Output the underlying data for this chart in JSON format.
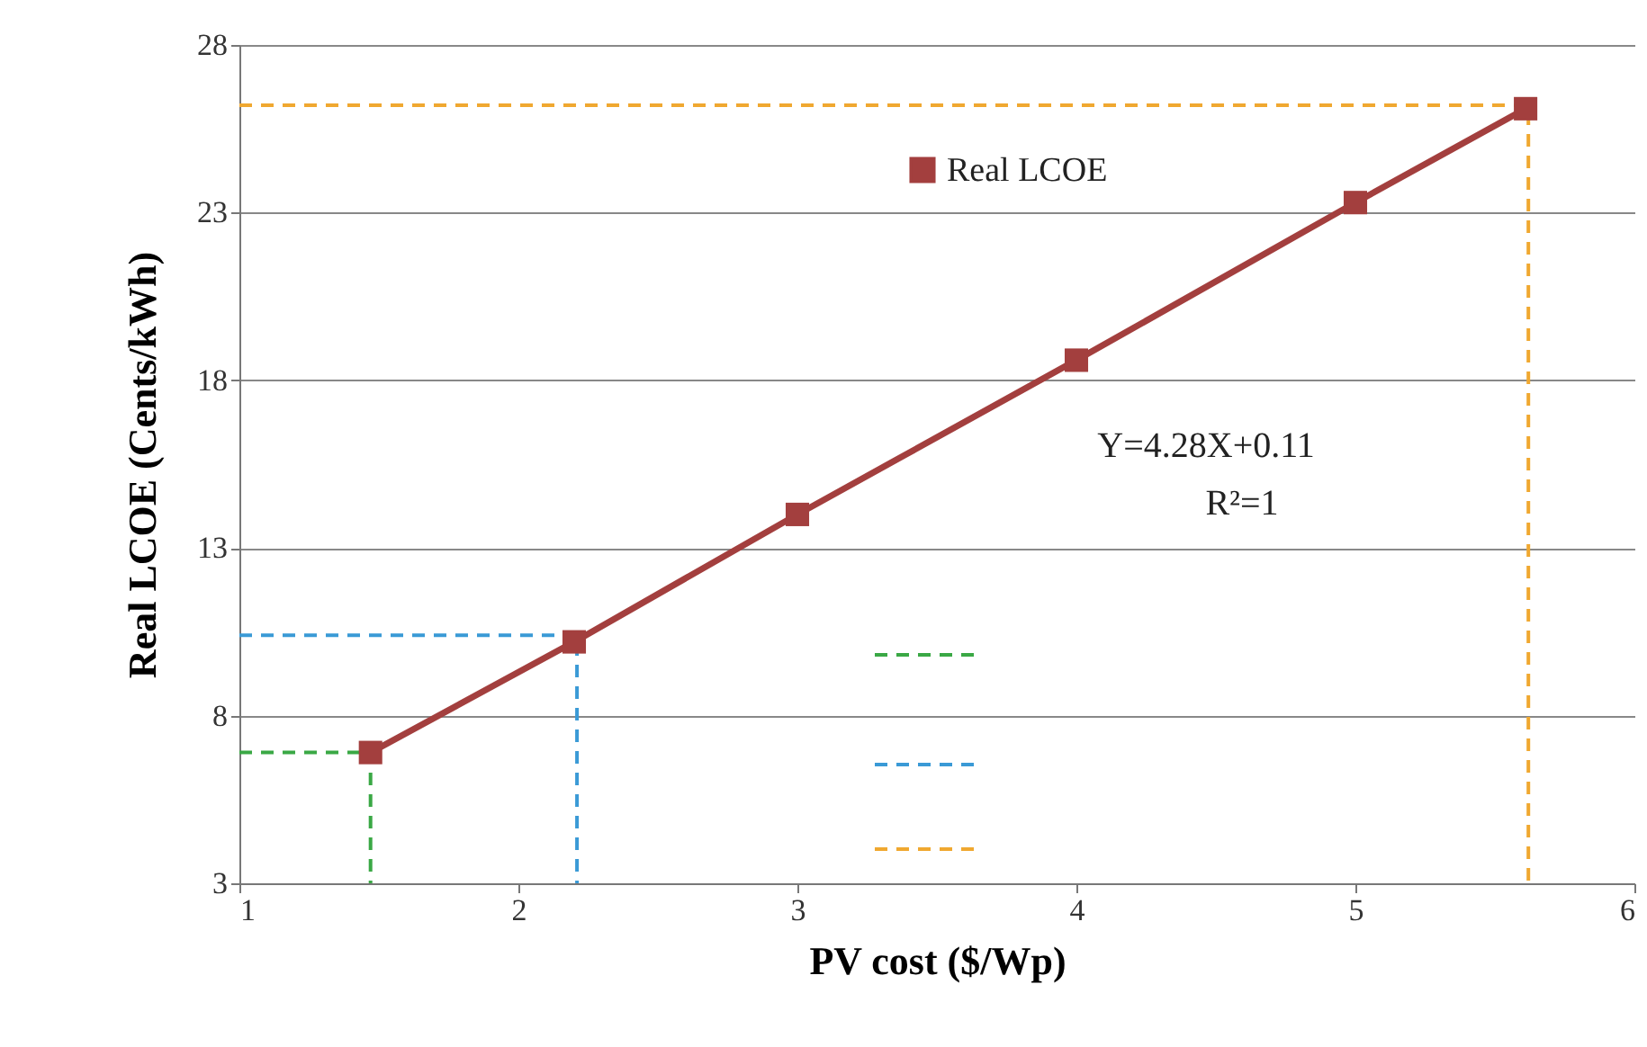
{
  "chart_data": {
    "type": "line",
    "xlabel": "PV cost ($/Wp)",
    "ylabel": "Real LCOE (Cents/kWh)",
    "xlim": [
      1,
      6
    ],
    "xticks": [
      1,
      2,
      3,
      4,
      5,
      6
    ],
    "ylim": [
      3,
      28
    ],
    "yticks": [
      3,
      8,
      13,
      18,
      23,
      28
    ],
    "grid": "y",
    "legend": "top right",
    "marker": "square",
    "line_style": "solid",
    "annotations": [
      "Y=4.28X+0.11",
      "R²=1"
    ],
    "series": [
      {
        "name": "Real LCOE",
        "color": "#a33f3e",
        "x": [
          1.47,
          2.2,
          3,
          4,
          5,
          5.61
        ],
        "values": [
          6.9,
          10.2,
          14.0,
          18.6,
          23.3,
          26.1
        ]
      },
      {
        "type": "line",
        "color": "#3aa845",
        "line_style": "dashed",
        "marker": "none",
        "x": [
          1,
          1.47,
          1.47
        ],
        "values": [
          6.9,
          6.9,
          3
        ]
      },
      {
        "type": "line",
        "color": "#3a9ad6",
        "line_style": "dashed",
        "marker": "none",
        "x": [
          1,
          2.21,
          2.21
        ],
        "values": [
          10.4,
          10.4,
          3
        ]
      },
      {
        "type": "line",
        "color": "#f0a830",
        "line_style": "dashed",
        "marker": "none",
        "x": [
          1,
          5.62,
          5.62
        ],
        "values": [
          26.2,
          26.2,
          3
        ]
      }
    ]
  }
}
